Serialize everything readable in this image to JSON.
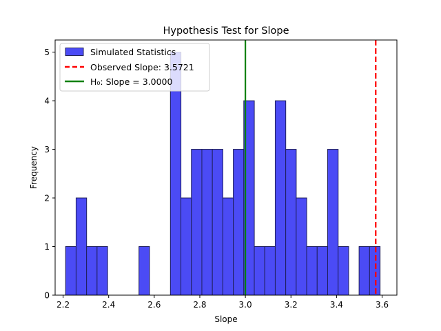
{
  "chart_data": {
    "type": "bar",
    "title": "Hypothesis Test for Slope",
    "xlabel": "Slope",
    "ylabel": "Frequency",
    "xlim": [
      2.165,
      3.665
    ],
    "ylim": [
      0,
      5.25
    ],
    "xticks": [
      2.2,
      2.4,
      2.6,
      2.8,
      3.0,
      3.2,
      3.4,
      3.6
    ],
    "xtick_labels": [
      "2.2",
      "2.4",
      "2.6",
      "2.8",
      "3.0",
      "3.2",
      "3.4",
      "3.6"
    ],
    "yticks": [
      0,
      1,
      2,
      3,
      4,
      5
    ],
    "ytick_labels": [
      "0",
      "1",
      "2",
      "3",
      "4",
      "5"
    ],
    "grid": false,
    "legend_placement": "top-left",
    "bin_width": 0.0462,
    "bins": [
      {
        "x": 2.211,
        "count": 1
      },
      {
        "x": 2.257,
        "count": 2
      },
      {
        "x": 2.303,
        "count": 1
      },
      {
        "x": 2.349,
        "count": 1
      },
      {
        "x": 2.395,
        "count": 0
      },
      {
        "x": 2.441,
        "count": 0
      },
      {
        "x": 2.487,
        "count": 0
      },
      {
        "x": 2.533,
        "count": 1
      },
      {
        "x": 2.579,
        "count": 0
      },
      {
        "x": 2.625,
        "count": 0
      },
      {
        "x": 2.671,
        "count": 5
      },
      {
        "x": 2.717,
        "count": 2
      },
      {
        "x": 2.763,
        "count": 3
      },
      {
        "x": 2.809,
        "count": 3
      },
      {
        "x": 2.855,
        "count": 3
      },
      {
        "x": 2.901,
        "count": 2
      },
      {
        "x": 2.947,
        "count": 3
      },
      {
        "x": 2.993,
        "count": 4
      },
      {
        "x": 3.039,
        "count": 1
      },
      {
        "x": 3.085,
        "count": 1
      },
      {
        "x": 3.131,
        "count": 4
      },
      {
        "x": 3.177,
        "count": 3
      },
      {
        "x": 3.223,
        "count": 2
      },
      {
        "x": 3.269,
        "count": 1
      },
      {
        "x": 3.315,
        "count": 1
      },
      {
        "x": 3.361,
        "count": 3
      },
      {
        "x": 3.407,
        "count": 1
      },
      {
        "x": 3.453,
        "count": 0
      },
      {
        "x": 3.499,
        "count": 1
      },
      {
        "x": 3.545,
        "count": 1
      }
    ],
    "bar_color": "#4b4bf5",
    "bar_edge_color": "#1f1f5a",
    "observed_slope": 3.5721,
    "observed_color": "#ff0000",
    "null_slope": 3.0,
    "null_color": "#008000",
    "legend": [
      {
        "label": "Simulated Statistics",
        "kind": "bar"
      },
      {
        "label": "Observed Slope: 3.5721",
        "kind": "dashed-line"
      },
      {
        "label": "H₀: Slope = 3.0000",
        "kind": "line"
      }
    ]
  }
}
